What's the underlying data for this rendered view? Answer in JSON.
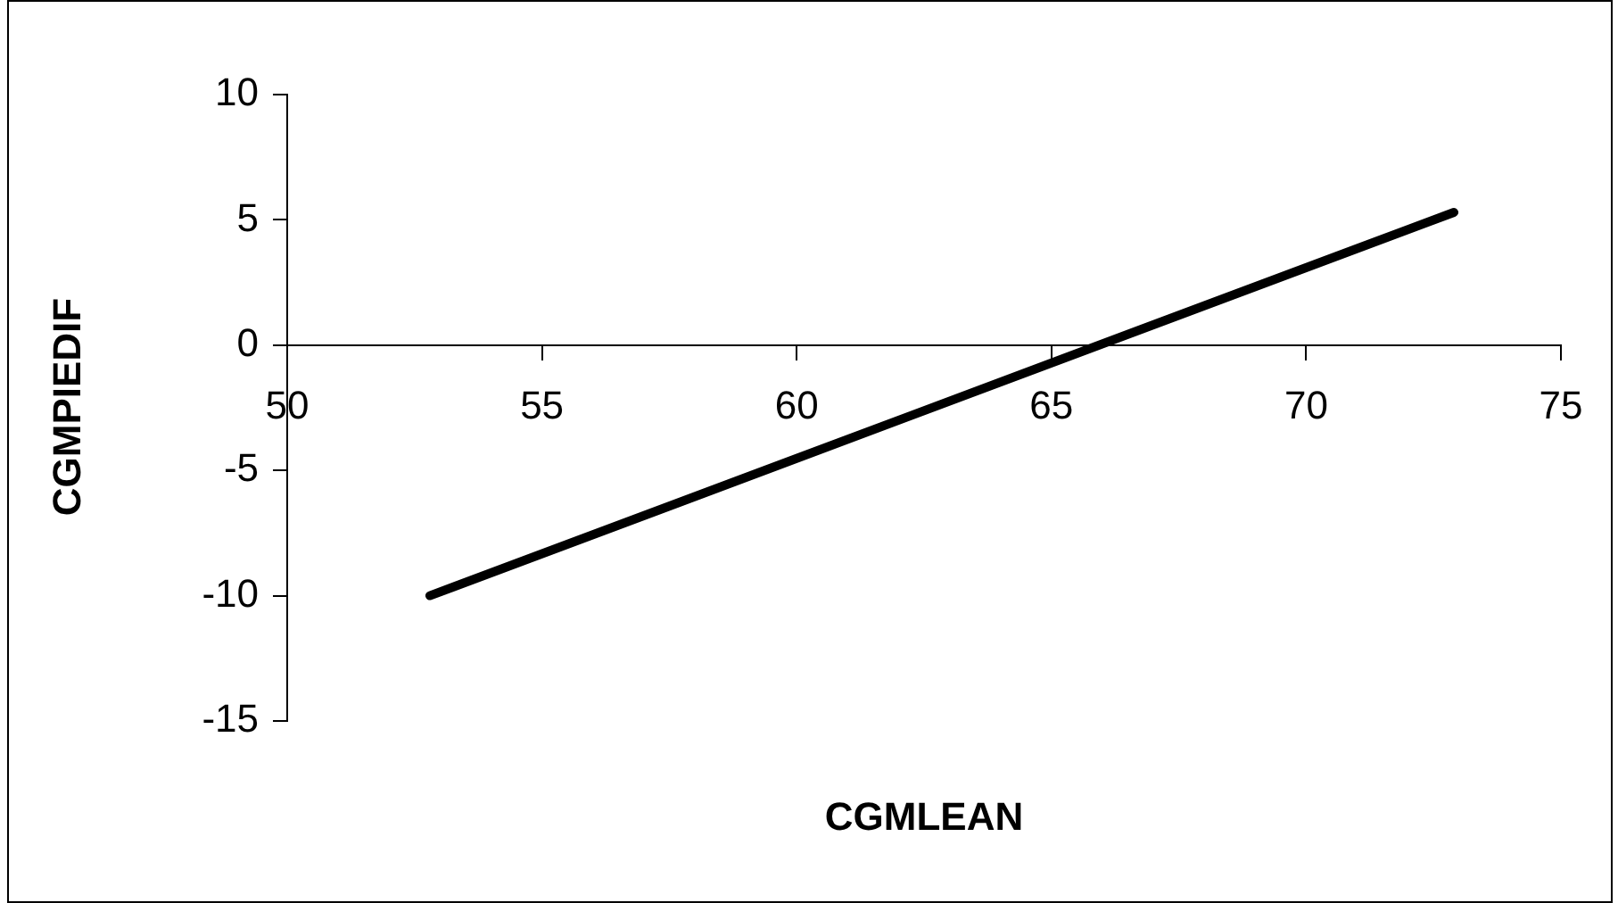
{
  "chart_data": {
    "type": "line",
    "xlabel": "CGMLEAN",
    "ylabel": "CGMPIEDIF",
    "series": [
      {
        "color": "#000000",
        "x": [
          52.8,
          72.9
        ],
        "values": [
          -10,
          5.3
        ]
      }
    ],
    "xlim": [
      50,
      75
    ],
    "xticks": [
      50,
      55,
      60,
      65,
      70,
      75
    ],
    "ylim": [
      -15,
      10
    ],
    "yticks": [
      -15,
      -10,
      -5,
      0,
      5,
      10
    ],
    "grid": false,
    "legend": false,
    "marker": "none",
    "line_style": "solid"
  }
}
